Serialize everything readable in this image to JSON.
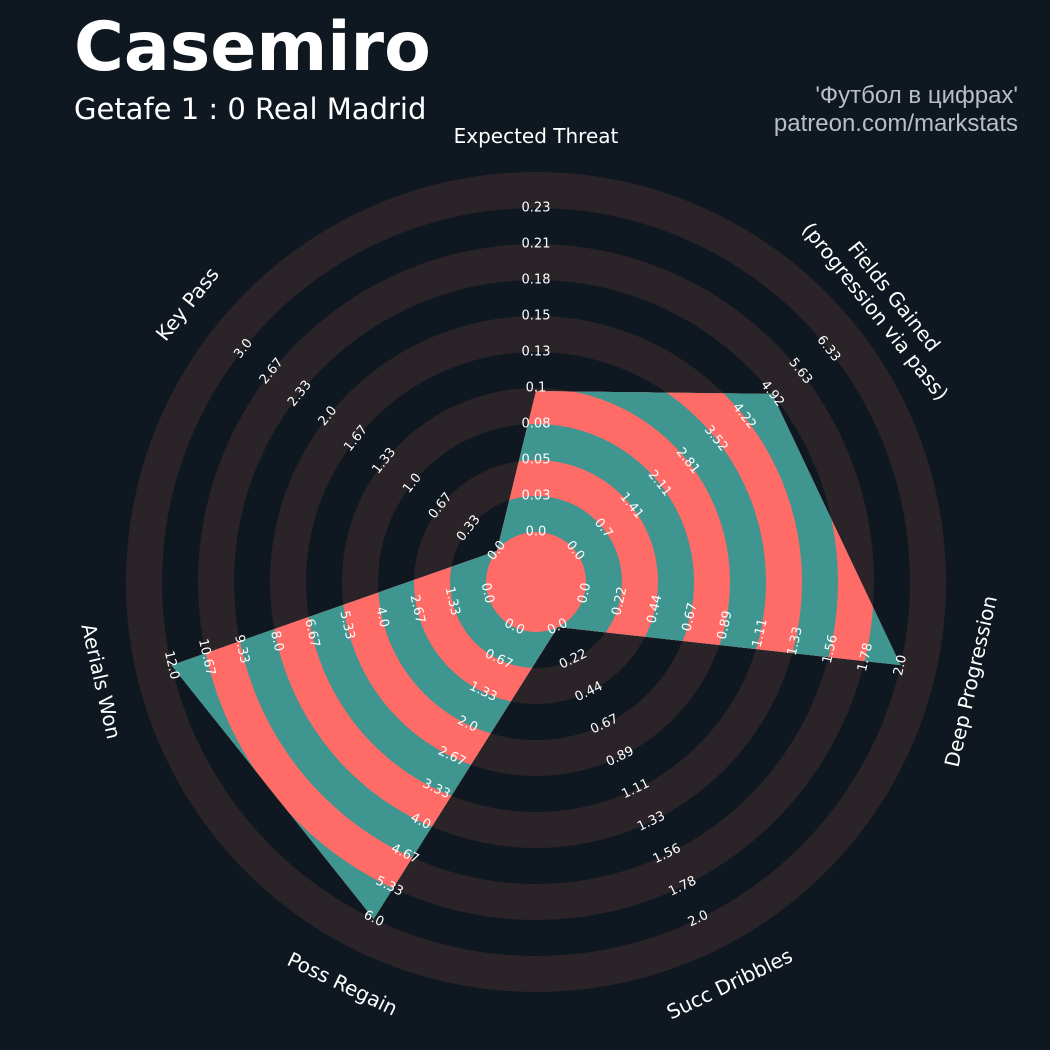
{
  "header": {
    "title": "Casemiro",
    "subtitle": "Getafe 1 : 0 Real Madrid",
    "credit_line1": "'Футбол в цифрах'",
    "credit_line2": "patreon.com/markstats"
  },
  "colors": {
    "background": "#0f1820",
    "ring_band": "#2a2328",
    "fill_teal": "#3f9590",
    "fill_coral": "#ff6b66",
    "text": "#ffffff"
  },
  "chart_data": {
    "type": "radar",
    "categories": [
      {
        "label": "Expected Threat",
        "value": 0.1,
        "ticks": [
          "0.0",
          "0.03",
          "0.05",
          "0.08",
          "0.1",
          "0.13",
          "0.15",
          "0.18",
          "0.21",
          "0.23"
        ],
        "min": 0.0,
        "max": 0.23
      },
      {
        "label": "Fields Gained\n(progression via pass)",
        "value": 4.92,
        "ticks": [
          "0.0",
          "0.7",
          "1.41",
          "2.11",
          "2.81",
          "3.52",
          "4.22",
          "4.92",
          "5.63",
          "6.33"
        ],
        "min": 0.0,
        "max": 6.33
      },
      {
        "label": "Deep Progression",
        "value": 2.0,
        "ticks": [
          "0.0",
          "0.22",
          "0.44",
          "0.67",
          "0.89",
          "1.11",
          "1.33",
          "1.56",
          "1.78",
          "2.0"
        ],
        "min": 0.0,
        "max": 2.0
      },
      {
        "label": "Succ Dribbles",
        "value": 0.0,
        "ticks": [
          "0.0",
          "0.22",
          "0.44",
          "0.67",
          "0.89",
          "1.11",
          "1.33",
          "1.56",
          "1.78",
          "2.0"
        ],
        "min": 0.0,
        "max": 2.0
      },
      {
        "label": "Poss Regain",
        "value": 6.0,
        "ticks": [
          "0.0",
          "0.67",
          "1.33",
          "2.0",
          "2.67",
          "3.33",
          "4.0",
          "4.67",
          "5.33",
          "6.0"
        ],
        "min": 0.0,
        "max": 6.0
      },
      {
        "label": "Aerials Won",
        "value": 12.0,
        "ticks": [
          "0.0",
          "1.33",
          "2.67",
          "4.0",
          "5.33",
          "6.67",
          "8.0",
          "9.33",
          "10.67",
          "12.0"
        ],
        "min": 0.0,
        "max": 12.0
      },
      {
        "label": "Key Pass",
        "value": 0.0,
        "ticks": [
          "0.0",
          "0.33",
          "0.67",
          "1.0",
          "1.33",
          "1.67",
          "2.0",
          "2.33",
          "2.67",
          "3.0"
        ],
        "min": 0.0,
        "max": 3.0
      }
    ]
  }
}
